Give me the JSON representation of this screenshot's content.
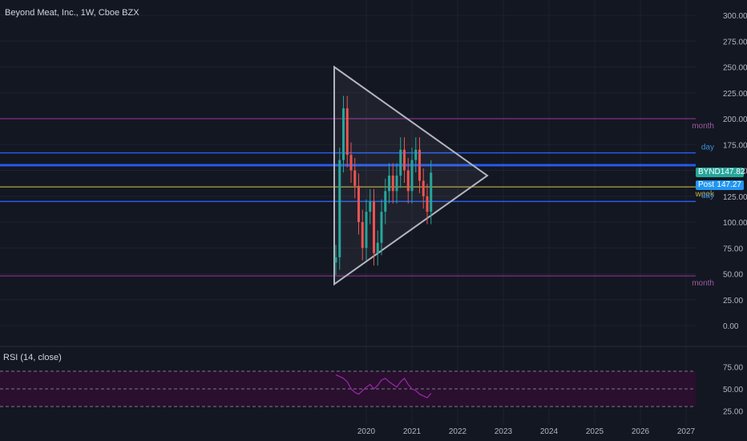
{
  "header": {
    "title": "Beyond Meat, Inc., 1W, Cboe BZX"
  },
  "rsi_panel": {
    "label": "RSI (14, close)"
  },
  "price_tags": {
    "symbol": "BYND",
    "symbol_value": "147.82",
    "post": "Post",
    "post_value": "147.27"
  },
  "colors": {
    "background": "#131722",
    "grid": "#1e2230",
    "axis_text": "#b2b5be",
    "month_line": "#7b2c7f",
    "day_line": "#2962ff",
    "week_line": "#a59a3c",
    "up_candle": "#26a69a",
    "down_candle": "#ef5350",
    "rsi_line": "#9c27b0",
    "triangle": "#b2b5be",
    "rsi_band": "#2a0f2e"
  },
  "chart_data": [
    {
      "type": "candlestick",
      "title": "Beyond Meat, Inc., 1W, Cboe BZX",
      "ylim": [
        0,
        300
      ],
      "y_ticks": [
        "0.00",
        "25.00",
        "50.00",
        "75.00",
        "100.00",
        "125.00",
        "150.00",
        "175.00",
        "200.00",
        "225.00",
        "250.00",
        "275.00",
        "300.00"
      ],
      "x_ticks": [
        "2020",
        "2021",
        "2022",
        "2023",
        "2024",
        "2025",
        "2026",
        "2027"
      ],
      "horizontal_levels": [
        {
          "label": "month",
          "value": 200
        },
        {
          "label": "day",
          "value": 167
        },
        {
          "label": "",
          "value": 155
        },
        {
          "label": "week",
          "value": 134
        },
        {
          "label": "day",
          "value": 120
        },
        {
          "label": "month",
          "value": 48
        }
      ],
      "triangle": {
        "apex_top": 250,
        "apex_bottom": 40,
        "apex_right": 145
      },
      "series": [
        {
          "name": "BYND",
          "x": [
            "2019-05",
            "2019-06",
            "2019-07",
            "2019-08",
            "2019-09",
            "2019-10",
            "2019-11",
            "2019-12",
            "2020-01",
            "2020-02",
            "2020-03",
            "2020-04",
            "2020-05",
            "2020-06",
            "2020-07",
            "2020-08",
            "2020-09",
            "2020-10",
            "2020-11",
            "2020-12",
            "2021-01",
            "2021-02",
            "2021-03",
            "2021-04",
            "2021-05",
            "2021-06"
          ],
          "values": [
            66,
            160,
            210,
            165,
            150,
            135,
            100,
            75,
            110,
            120,
            70,
            80,
            110,
            130,
            145,
            130,
            145,
            170,
            150,
            130,
            160,
            170,
            140,
            125,
            110,
            147.82
          ]
        }
      ]
    },
    {
      "type": "line",
      "title": "RSI (14, close)",
      "ylim": [
        20,
        80
      ],
      "y_ticks": [
        "25.00",
        "50.00",
        "75.00"
      ],
      "reference_lines": [
        70,
        50,
        30
      ],
      "series": [
        {
          "name": "RSI (14, close)",
          "values": [
            66,
            64,
            62,
            58,
            50,
            46,
            44,
            48,
            52,
            55,
            50,
            54,
            60,
            62,
            58,
            55,
            52,
            58,
            62,
            55,
            50,
            48,
            44,
            42,
            40,
            45
          ]
        }
      ]
    }
  ]
}
